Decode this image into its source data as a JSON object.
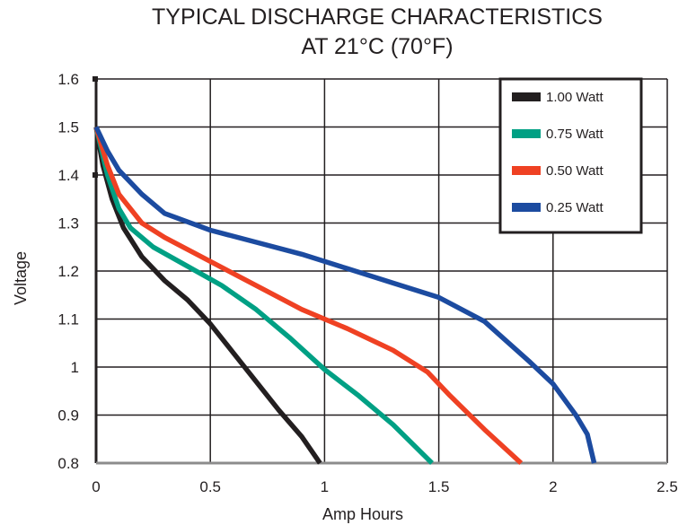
{
  "chart_data": {
    "type": "line",
    "title": "TYPICAL DISCHARGE CHARACTERISTICS",
    "subtitle": "AT 21°C (70°F)",
    "xlabel": "Amp Hours",
    "ylabel": "Voltage",
    "xlim": [
      0,
      2.5
    ],
    "ylim": [
      0.8,
      1.6
    ],
    "grid": true,
    "legend_position": "top-right",
    "x_ticks": [
      {
        "value": 0,
        "label": "0"
      },
      {
        "value": 0.5,
        "label": "0.5"
      },
      {
        "value": 1,
        "label": "1"
      },
      {
        "value": 1.5,
        "label": "1.5"
      },
      {
        "value": 2,
        "label": "2"
      },
      {
        "value": 2.5,
        "label": "2.5"
      }
    ],
    "y_ticks": [
      {
        "value": 0.8,
        "label": "0.8"
      },
      {
        "value": 0.9,
        "label": "0.9"
      },
      {
        "value": 1.0,
        "label": "1"
      },
      {
        "value": 1.1,
        "label": "1.1"
      },
      {
        "value": 1.2,
        "label": "1.2"
      },
      {
        "value": 1.3,
        "label": "1.3"
      },
      {
        "value": 1.4,
        "label": "1.4"
      },
      {
        "value": 1.5,
        "label": "1.5"
      },
      {
        "value": 1.6,
        "label": "1.6"
      }
    ],
    "series": [
      {
        "name": "1.00  Watt",
        "color": "#231f20",
        "points": [
          [
            0,
            1.5
          ],
          [
            0.03,
            1.42
          ],
          [
            0.07,
            1.35
          ],
          [
            0.12,
            1.29
          ],
          [
            0.2,
            1.23
          ],
          [
            0.3,
            1.18
          ],
          [
            0.4,
            1.14
          ],
          [
            0.5,
            1.09
          ],
          [
            0.6,
            1.03
          ],
          [
            0.7,
            0.97
          ],
          [
            0.8,
            0.91
          ],
          [
            0.9,
            0.855
          ],
          [
            0.98,
            0.8
          ]
        ]
      },
      {
        "name": "0.75  Watt",
        "color": "#00a084",
        "points": [
          [
            0,
            1.5
          ],
          [
            0.05,
            1.4
          ],
          [
            0.1,
            1.33
          ],
          [
            0.15,
            1.29
          ],
          [
            0.25,
            1.25
          ],
          [
            0.4,
            1.21
          ],
          [
            0.55,
            1.17
          ],
          [
            0.7,
            1.12
          ],
          [
            0.85,
            1.06
          ],
          [
            1.0,
            0.995
          ],
          [
            1.15,
            0.94
          ],
          [
            1.3,
            0.88
          ],
          [
            1.47,
            0.8
          ]
        ]
      },
      {
        "name": "0.50  Watt",
        "color": "#ef4123",
        "points": [
          [
            0,
            1.5
          ],
          [
            0.05,
            1.42
          ],
          [
            0.1,
            1.36
          ],
          [
            0.2,
            1.3
          ],
          [
            0.3,
            1.27
          ],
          [
            0.5,
            1.22
          ],
          [
            0.7,
            1.17
          ],
          [
            0.9,
            1.12
          ],
          [
            1.1,
            1.08
          ],
          [
            1.3,
            1.035
          ],
          [
            1.45,
            0.99
          ],
          [
            1.55,
            0.94
          ],
          [
            1.7,
            0.87
          ],
          [
            1.86,
            0.8
          ]
        ]
      },
      {
        "name": "0.25  Watt",
        "color": "#1c4ba0",
        "points": [
          [
            0,
            1.5
          ],
          [
            0.05,
            1.45
          ],
          [
            0.1,
            1.41
          ],
          [
            0.2,
            1.36
          ],
          [
            0.3,
            1.32
          ],
          [
            0.5,
            1.285
          ],
          [
            0.7,
            1.26
          ],
          [
            0.9,
            1.235
          ],
          [
            1.1,
            1.205
          ],
          [
            1.3,
            1.175
          ],
          [
            1.5,
            1.145
          ],
          [
            1.7,
            1.095
          ],
          [
            1.9,
            1.01
          ],
          [
            2.0,
            0.965
          ],
          [
            2.1,
            0.9
          ],
          [
            2.15,
            0.86
          ],
          [
            2.18,
            0.8
          ]
        ]
      }
    ]
  }
}
